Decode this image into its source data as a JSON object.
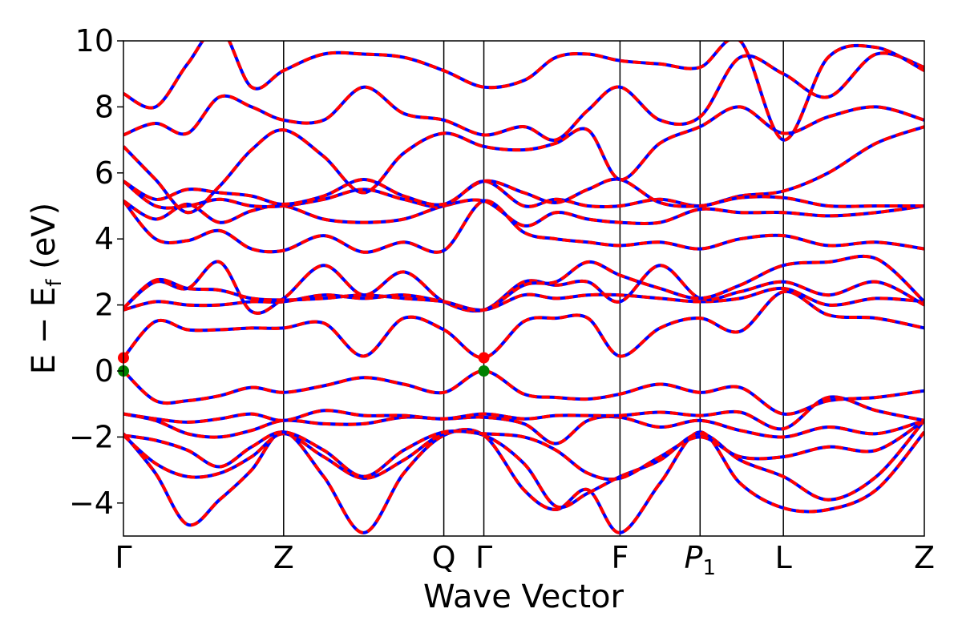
{
  "chart_data": {
    "type": "line",
    "title": "",
    "xlabel": "Wave Vector",
    "ylabel": "E − E_f (eV)",
    "ylabel_parts": {
      "pre": "E  −  E",
      "sub": "f",
      "post": " (eV)"
    },
    "ylim": [
      -5,
      10
    ],
    "xlim": [
      0,
      5
    ],
    "grid": false,
    "legend": "none",
    "yticks": [
      -4,
      -2,
      0,
      2,
      4,
      6,
      8,
      10
    ],
    "ytick_labels": [
      "−4",
      "−2",
      "0",
      "2",
      "4",
      "6",
      "8",
      "10"
    ],
    "high_symmetry_points": [
      {
        "label": "Γ",
        "x": 0.0
      },
      {
        "label": "Z",
        "x": 1.0
      },
      {
        "label": "Q",
        "x": 2.0
      },
      {
        "label": "Γ",
        "x": 2.25
      },
      {
        "label": "F",
        "x": 3.1
      },
      {
        "label": "P",
        "sub": "1",
        "x": 3.6
      },
      {
        "label": "L",
        "x": 4.12
      },
      {
        "label": "Z",
        "x": 5.0
      }
    ],
    "line_colors": {
      "method_a": "#ff0000",
      "method_b": "#0000ff"
    },
    "markers": [
      {
        "role": "cbm",
        "color": "#ff0000",
        "points": [
          [
            0.0,
            0.4
          ],
          [
            2.25,
            0.4
          ]
        ]
      },
      {
        "role": "vbm",
        "color": "#008000",
        "points": [
          [
            0.0,
            0.0
          ],
          [
            2.25,
            0.0
          ]
        ]
      }
    ],
    "x_knots": [
      0.0,
      0.2,
      0.4,
      0.6,
      0.8,
      1.0,
      1.25,
      1.5,
      1.75,
      2.0,
      2.25,
      2.5,
      2.7,
      2.9,
      3.1,
      3.35,
      3.6,
      3.85,
      4.12,
      4.4,
      4.7,
      5.0
    ],
    "bands": [
      {
        "name": "b01",
        "y": [
          -1.9,
          -3.1,
          -4.65,
          -3.9,
          -3.0,
          -1.85,
          -3.2,
          -4.9,
          -3.1,
          -1.95,
          -1.95,
          -3.6,
          -4.2,
          -3.6,
          -4.9,
          -3.4,
          -1.85,
          -3.4,
          -4.15,
          -4.2,
          -3.6,
          -1.85
        ]
      },
      {
        "name": "b02",
        "y": [
          -1.95,
          -2.8,
          -3.2,
          -3.1,
          -2.6,
          -1.9,
          -2.6,
          -3.25,
          -2.7,
          -1.9,
          -1.95,
          -2.8,
          -4.1,
          -3.7,
          -3.2,
          -2.7,
          -1.9,
          -2.7,
          -3.2,
          -3.9,
          -3.2,
          -1.5
        ]
      },
      {
        "name": "b03",
        "y": [
          -1.95,
          -2.1,
          -2.4,
          -2.9,
          -2.3,
          -1.85,
          -2.4,
          -3.2,
          -2.4,
          -1.85,
          -1.9,
          -2.0,
          -2.4,
          -3.1,
          -3.25,
          -2.6,
          -2.0,
          -2.6,
          -2.6,
          -2.3,
          -2.4,
          -1.5
        ]
      },
      {
        "name": "b04",
        "y": [
          -1.3,
          -1.5,
          -1.9,
          -2.0,
          -1.8,
          -1.5,
          -1.6,
          -1.6,
          -1.4,
          -1.45,
          -1.4,
          -1.6,
          -2.2,
          -1.5,
          -1.4,
          -1.7,
          -1.5,
          -1.8,
          -2.0,
          -1.7,
          -1.9,
          -1.5
        ]
      },
      {
        "name": "b05",
        "y": [
          -1.3,
          -1.45,
          -1.55,
          -1.45,
          -1.3,
          -1.5,
          -1.2,
          -1.35,
          -1.35,
          -1.45,
          -1.3,
          -1.45,
          -1.35,
          -1.35,
          -1.35,
          -1.25,
          -1.35,
          -1.25,
          -1.75,
          -0.8,
          -1.2,
          -1.5
        ]
      },
      {
        "name": "b06",
        "y": [
          0.0,
          -0.9,
          -0.9,
          -0.75,
          -0.5,
          -0.65,
          -0.45,
          -0.2,
          -0.4,
          -0.65,
          0.0,
          -0.7,
          -0.8,
          -0.85,
          -0.7,
          -0.4,
          -0.65,
          -0.5,
          -1.3,
          -0.9,
          -0.8,
          -0.6
        ]
      },
      {
        "name": "b07",
        "y": [
          0.4,
          1.5,
          1.25,
          1.25,
          1.3,
          1.3,
          1.45,
          0.45,
          1.6,
          1.25,
          0.4,
          1.5,
          1.6,
          1.6,
          0.45,
          1.3,
          1.6,
          1.2,
          2.4,
          1.7,
          1.6,
          1.3
        ]
      },
      {
        "name": "b08",
        "y": [
          1.85,
          2.1,
          2.0,
          2.0,
          2.1,
          2.1,
          2.3,
          2.2,
          2.3,
          2.1,
          1.85,
          2.3,
          2.2,
          2.3,
          2.3,
          2.2,
          2.1,
          2.2,
          2.5,
          2.0,
          2.2,
          2.1
        ]
      },
      {
        "name": "b09",
        "y": [
          1.9,
          2.7,
          2.5,
          3.3,
          1.8,
          2.2,
          3.2,
          2.3,
          3.0,
          2.1,
          1.85,
          2.7,
          2.6,
          2.7,
          2.1,
          3.2,
          2.2,
          2.4,
          2.7,
          2.3,
          2.7,
          2.0
        ]
      },
      {
        "name": "b10",
        "y": [
          1.9,
          2.75,
          2.5,
          2.45,
          2.2,
          2.15,
          2.2,
          2.3,
          2.2,
          2.1,
          1.85,
          2.6,
          2.7,
          3.3,
          2.9,
          2.5,
          2.2,
          2.6,
          3.2,
          3.3,
          3.4,
          2.1
        ]
      },
      {
        "name": "b11",
        "y": [
          5.15,
          4.0,
          3.95,
          4.25,
          3.7,
          3.65,
          4.1,
          3.6,
          3.9,
          3.65,
          5.15,
          4.2,
          4.0,
          3.9,
          3.8,
          3.9,
          3.7,
          4.0,
          4.1,
          3.8,
          3.9,
          3.7
        ]
      },
      {
        "name": "b12",
        "y": [
          5.15,
          4.6,
          5.05,
          4.5,
          4.85,
          5.0,
          4.6,
          4.5,
          4.6,
          5.0,
          5.15,
          4.4,
          4.8,
          4.6,
          4.5,
          4.5,
          4.9,
          4.8,
          4.8,
          4.7,
          4.8,
          5.0
        ]
      },
      {
        "name": "b13",
        "y": [
          5.75,
          5.0,
          5.0,
          5.2,
          5.0,
          5.0,
          5.2,
          5.5,
          5.2,
          5.0,
          5.75,
          5.0,
          5.2,
          5.0,
          5.0,
          5.2,
          5.0,
          5.3,
          5.45,
          6.0,
          6.9,
          7.4
        ]
      },
      {
        "name": "b14",
        "y": [
          5.75,
          5.2,
          5.5,
          5.4,
          5.3,
          5.05,
          5.3,
          5.8,
          5.3,
          5.05,
          5.75,
          5.4,
          5.1,
          5.5,
          5.8,
          5.1,
          5.0,
          5.25,
          5.25,
          5.0,
          5.0,
          5.0
        ]
      },
      {
        "name": "b15",
        "y": [
          6.8,
          5.8,
          4.8,
          5.6,
          6.7,
          7.3,
          6.5,
          5.4,
          6.6,
          7.2,
          6.8,
          6.7,
          6.9,
          7.3,
          5.8,
          6.9,
          7.4,
          8.0,
          7.2,
          7.7,
          8.0,
          7.6
        ]
      },
      {
        "name": "b16",
        "y": [
          7.15,
          7.5,
          7.2,
          8.3,
          8.0,
          7.6,
          7.6,
          8.6,
          7.8,
          7.6,
          7.15,
          7.4,
          7.0,
          7.9,
          8.6,
          7.6,
          7.7,
          9.5,
          9.0,
          8.3,
          9.6,
          9.2
        ]
      },
      {
        "name": "b17",
        "y": [
          8.4,
          8.0,
          9.3,
          10.4,
          8.6,
          9.1,
          9.6,
          9.6,
          9.5,
          9.1,
          8.6,
          8.8,
          9.5,
          9.6,
          9.4,
          9.3,
          9.2,
          10.0,
          7.0,
          9.5,
          9.8,
          9.1
        ]
      }
    ]
  }
}
